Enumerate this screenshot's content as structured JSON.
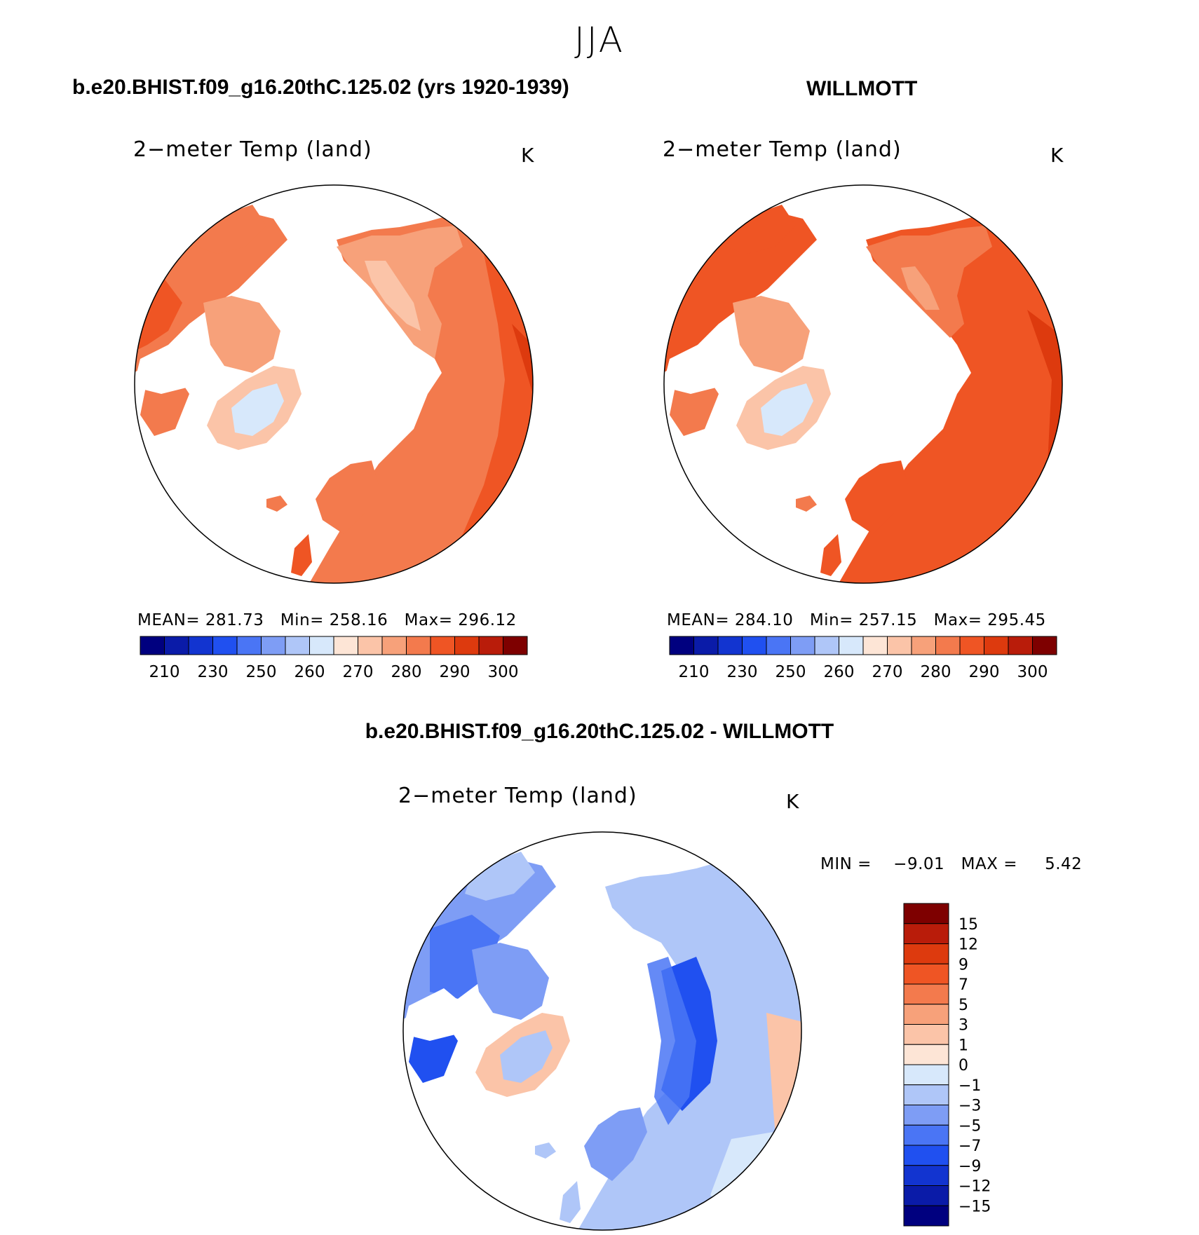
{
  "title": "JJA",
  "panels": [
    {
      "case_title": "b.e20.BHIST.f09_g16.20thC.125.02 (yrs 1920-1939)",
      "variable": "2−meter Temp (land)",
      "units": "K",
      "stats": {
        "mean_label": "MEAN=",
        "mean": "281.73",
        "min_label": "Min=",
        "min": "258.16",
        "max_label": "Max=",
        "max": "296.12"
      }
    },
    {
      "case_title": "WILLMOTT",
      "variable": "2−meter Temp (land)",
      "units": "K",
      "stats": {
        "mean_label": "MEAN=",
        "mean": "284.10",
        "min_label": "Min=",
        "min": "257.15",
        "max_label": "Max=",
        "max": "295.45"
      }
    }
  ],
  "diff_panel": {
    "case_title": "b.e20.BHIST.f09_g16.20thC.125.02 - WILLMOTT",
    "variable": "2−meter Temp (land)",
    "units": "K",
    "stats": {
      "min_label": "MIN =",
      "min": "−9.01",
      "max_label": "MAX =",
      "max": "5.42"
    }
  },
  "chart_data": [
    {
      "type": "heatmap",
      "projection": "north polar stereographic",
      "title": "b.e20.BHIST.f09_g16.20thC.125.02 (yrs 1920-1939)",
      "variable": "2-meter Temp (land)",
      "units": "K",
      "mean": 281.73,
      "min": 258.16,
      "max": 296.12,
      "colorbar": {
        "orientation": "horizontal",
        "tick_labels": [
          "210",
          "230",
          "250",
          "260",
          "270",
          "280",
          "290",
          "300"
        ],
        "colors": [
          "#00007f",
          "#0a1ba8",
          "#1234d0",
          "#2050f0",
          "#4a75f5",
          "#7e9df5",
          "#afc6f8",
          "#d7e8fb",
          "#fde5d6",
          "#fbc4a8",
          "#f7a17a",
          "#f37a4d",
          "#ef5524",
          "#dd3a0e",
          "#b91c0a",
          "#7e0000"
        ]
      }
    },
    {
      "type": "heatmap",
      "projection": "north polar stereographic",
      "title": "WILLMOTT",
      "variable": "2-meter Temp (land)",
      "units": "K",
      "mean": 284.1,
      "min": 257.15,
      "max": 295.45,
      "colorbar": {
        "orientation": "horizontal",
        "tick_labels": [
          "210",
          "230",
          "250",
          "260",
          "270",
          "280",
          "290",
          "300"
        ],
        "colors": [
          "#00007f",
          "#0a1ba8",
          "#1234d0",
          "#2050f0",
          "#4a75f5",
          "#7e9df5",
          "#afc6f8",
          "#d7e8fb",
          "#fde5d6",
          "#fbc4a8",
          "#f7a17a",
          "#f37a4d",
          "#ef5524",
          "#dd3a0e",
          "#b91c0a",
          "#7e0000"
        ]
      }
    },
    {
      "type": "heatmap",
      "projection": "north polar stereographic",
      "title": "b.e20.BHIST.f09_g16.20thC.125.02 - WILLMOTT",
      "variable": "2-meter Temp (land)",
      "units": "K",
      "min": -9.01,
      "max": 5.42,
      "colorbar": {
        "orientation": "vertical",
        "tick_labels": [
          "15",
          "12",
          "9",
          "7",
          "5",
          "3",
          "1",
          "0",
          "−1",
          "−3",
          "−5",
          "−7",
          "−9",
          "−12",
          "−15"
        ],
        "colors": [
          "#7e0000",
          "#b91c0a",
          "#dd3a0e",
          "#ef5524",
          "#f37a4d",
          "#f7a17a",
          "#fbc4a8",
          "#fde5d6",
          "#d7e8fb",
          "#afc6f8",
          "#7e9df5",
          "#4a75f5",
          "#2050f0",
          "#1234d0",
          "#0a1ba8",
          "#00007f"
        ]
      }
    }
  ]
}
